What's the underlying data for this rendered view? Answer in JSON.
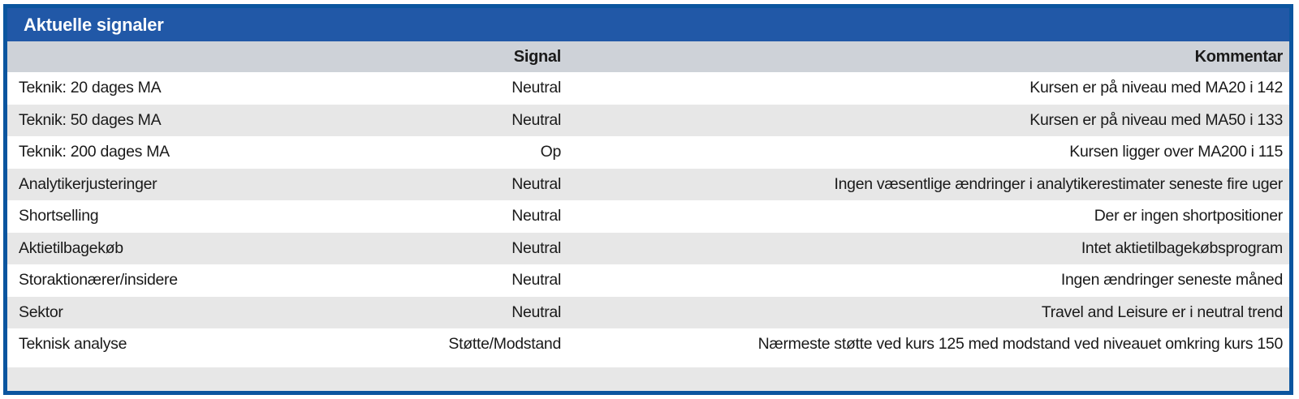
{
  "chart_data": {
    "type": "table",
    "title": "Aktuelle signaler",
    "columns": {
      "label": "",
      "signal": "Signal",
      "comment": "Kommentar"
    },
    "rows": [
      {
        "label": "Teknik: 20 dages MA",
        "signal": "Neutral",
        "comment": "Kursen er på niveau med MA20 i 142"
      },
      {
        "label": "Teknik: 50 dages MA",
        "signal": "Neutral",
        "comment": "Kursen er på niveau med MA50 i 133"
      },
      {
        "label": "Teknik: 200 dages MA",
        "signal": "Op",
        "comment": "Kursen ligger over MA200 i 115"
      },
      {
        "label": "Analytikerjusteringer",
        "signal": "Neutral",
        "comment": "Ingen væsentlige ændringer i analytikerestimater seneste fire uger"
      },
      {
        "label": "Shortselling",
        "signal": "Neutral",
        "comment": "Der er ingen shortpositioner"
      },
      {
        "label": "Aktietilbagekøb",
        "signal": "Neutral",
        "comment": "Intet aktietilbagekøbsprogram"
      },
      {
        "label": "Storaktionærer/insidere",
        "signal": "Neutral",
        "comment": "Ingen ændringer seneste måned"
      },
      {
        "label": "Sektor",
        "signal": "Neutral",
        "comment": "Travel and Leisure er i neutral trend"
      },
      {
        "label": "Teknisk analyse",
        "signal": "Støtte/Modstand",
        "comment": "Nærmeste støtte ved kurs 125 med modstand ved niveauet omkring kurs 150"
      }
    ],
    "layout": {
      "legend": "none",
      "grid": "off",
      "row_striping": "alternating"
    },
    "colors": {
      "frame_border": "#0b559f",
      "title_bar_background": "#2158a7",
      "title_text": "#ffffff",
      "header_row_background": "#ced2d8",
      "row_stripe": "#e7e7e7",
      "row_plain": "#ffffff",
      "body_text": "#1a1a1a"
    }
  }
}
